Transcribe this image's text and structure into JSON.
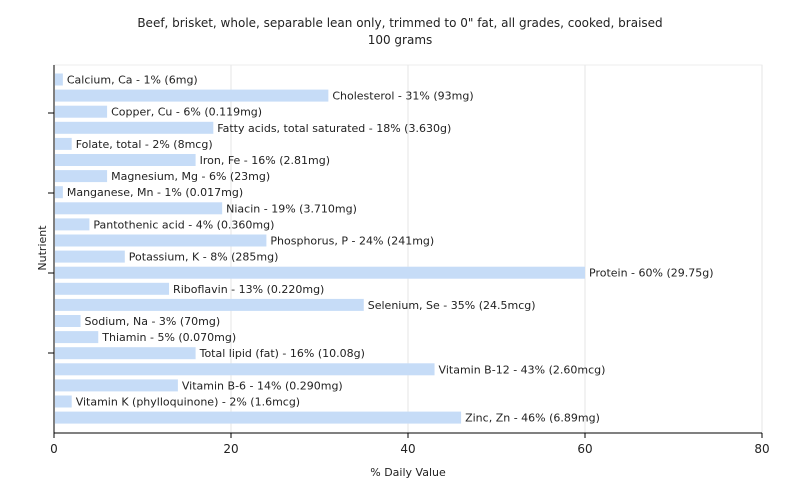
{
  "chart_data": {
    "type": "bar",
    "orientation": "horizontal",
    "title": "Beef, brisket, whole, separable lean only, trimmed to 0\" fat, all grades, cooked, braised",
    "subtitle": "100 grams",
    "xlabel": "% Daily Value",
    "ylabel": "Nutrient",
    "xlim": [
      0,
      80
    ],
    "xticks": [
      "0",
      "20",
      "40",
      "60",
      "80"
    ],
    "grid": true,
    "bar_color": "#c6dcf7",
    "categories": [
      "Calcium, Ca",
      "Cholesterol",
      "Copper, Cu",
      "Fatty acids, total saturated",
      "Folate, total",
      "Iron, Fe",
      "Magnesium, Mg",
      "Manganese, Mn",
      "Niacin",
      "Pantothenic acid",
      "Phosphorus, P",
      "Potassium, K",
      "Protein",
      "Riboflavin",
      "Selenium, Se",
      "Sodium, Na",
      "Thiamin",
      "Total lipid (fat)",
      "Vitamin B-12",
      "Vitamin B-6",
      "Vitamin K (phylloquinone)",
      "Zinc, Zn"
    ],
    "values": [
      1,
      31,
      6,
      18,
      2,
      16,
      6,
      1,
      19,
      4,
      24,
      8,
      60,
      13,
      35,
      3,
      5,
      16,
      43,
      14,
      2,
      46
    ],
    "labels": [
      "Calcium, Ca - 1% (6mg)",
      "Cholesterol - 31% (93mg)",
      "Copper, Cu - 6% (0.119mg)",
      "Fatty acids, total saturated - 18% (3.630g)",
      "Folate, total - 2% (8mcg)",
      "Iron, Fe - 16% (2.81mg)",
      "Magnesium, Mg - 6% (23mg)",
      "Manganese, Mn - 1% (0.017mg)",
      "Niacin - 19% (3.710mg)",
      "Pantothenic acid - 4% (0.360mg)",
      "Phosphorus, P - 24% (241mg)",
      "Potassium, K - 8% (285mg)",
      "Protein - 60% (29.75g)",
      "Riboflavin - 13% (0.220mg)",
      "Selenium, Se - 35% (24.5mcg)",
      "Sodium, Na - 3% (70mg)",
      "Thiamin - 5% (0.070mg)",
      "Total lipid (fat) - 16% (10.08g)",
      "Vitamin B-12 - 43% (2.60mcg)",
      "Vitamin B-6 - 14% (0.290mg)",
      "Vitamin K (phylloquinone) - 2% (1.6mcg)",
      "Zinc, Zn - 46% (6.89mg)"
    ]
  }
}
